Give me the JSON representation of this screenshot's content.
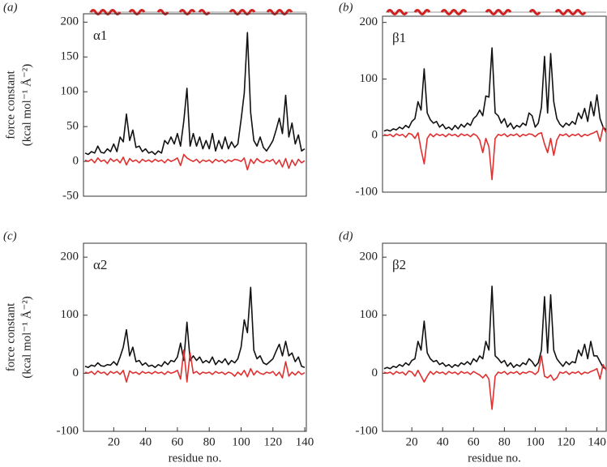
{
  "chart_data": [
    {
      "type": "line",
      "panel": "(a)",
      "label": "α1",
      "ylabel": [
        "force constant",
        "(kcal mol⁻¹ Å⁻²)"
      ],
      "x": [
        2,
        4,
        6,
        8,
        10,
        12,
        14,
        16,
        18,
        20,
        22,
        24,
        26,
        28,
        30,
        32,
        34,
        36,
        38,
        40,
        42,
        44,
        46,
        48,
        50,
        52,
        54,
        56,
        58,
        60,
        62,
        64,
        66,
        68,
        70,
        72,
        74,
        76,
        78,
        80,
        82,
        84,
        86,
        88,
        90,
        92,
        94,
        96,
        98,
        100,
        102,
        104,
        106,
        108,
        110,
        112,
        114,
        116,
        118,
        120,
        122,
        124,
        126,
        128,
        130,
        132,
        134,
        136,
        138,
        140
      ],
      "series": [
        {
          "color": "#111111",
          "values": [
            12,
            10,
            14,
            12,
            22,
            13,
            12,
            18,
            14,
            25,
            14,
            35,
            28,
            68,
            30,
            45,
            20,
            22,
            14,
            18,
            12,
            14,
            10,
            15,
            12,
            30,
            25,
            35,
            25,
            40,
            22,
            58,
            105,
            22,
            40,
            22,
            35,
            18,
            30,
            18,
            40,
            15,
            30,
            18,
            35,
            18,
            28,
            20,
            25,
            60,
            98,
            185,
            70,
            30,
            22,
            35,
            20,
            15,
            22,
            30,
            45,
            62,
            40,
            95,
            35,
            55,
            25,
            38,
            15,
            18
          ]
        },
        {
          "color": "#e03030",
          "values": [
            2,
            0,
            3,
            -2,
            5,
            0,
            2,
            -3,
            4,
            0,
            3,
            -2,
            6,
            -5,
            4,
            0,
            2,
            -2,
            3,
            0,
            2,
            -1,
            3,
            0,
            2,
            -2,
            3,
            0,
            2,
            5,
            -6,
            10,
            5,
            2,
            0,
            3,
            -2,
            2,
            0,
            2,
            -2,
            3,
            0,
            2,
            -2,
            2,
            0,
            3,
            2,
            0,
            5,
            -12,
            3,
            -3,
            4,
            0,
            -2,
            2,
            0,
            3,
            -4,
            2,
            -8,
            4,
            -10,
            2,
            -6,
            3,
            -2,
            1
          ]
        }
      ],
      "xlim": [
        1,
        141
      ],
      "ylim": [
        -50,
        212
      ],
      "yticks": [
        -50,
        0,
        50,
        100,
        150,
        200
      ]
    },
    {
      "type": "line",
      "panel": "(b)",
      "label": "β1",
      "x": [
        2,
        4,
        6,
        8,
        10,
        12,
        14,
        16,
        18,
        20,
        22,
        24,
        26,
        28,
        30,
        32,
        34,
        36,
        38,
        40,
        42,
        44,
        46,
        48,
        50,
        52,
        54,
        56,
        58,
        60,
        62,
        64,
        66,
        68,
        70,
        72,
        74,
        76,
        78,
        80,
        82,
        84,
        86,
        88,
        90,
        92,
        94,
        96,
        98,
        100,
        102,
        104,
        106,
        108,
        110,
        112,
        114,
        116,
        118,
        120,
        122,
        124,
        126,
        128,
        130,
        132,
        134,
        136,
        138,
        140,
        142,
        144,
        146
      ],
      "series": [
        {
          "color": "#111111",
          "values": [
            8,
            10,
            8,
            12,
            10,
            15,
            12,
            18,
            14,
            25,
            30,
            60,
            45,
            118,
            40,
            28,
            22,
            25,
            15,
            20,
            12,
            15,
            10,
            18,
            12,
            20,
            15,
            22,
            18,
            30,
            35,
            45,
            35,
            70,
            68,
            155,
            40,
            35,
            22,
            30,
            15,
            22,
            12,
            18,
            15,
            22,
            18,
            40,
            35,
            15,
            22,
            50,
            140,
            40,
            145,
            60,
            30,
            20,
            15,
            22,
            18,
            25,
            20,
            40,
            30,
            48,
            25,
            60,
            35,
            72,
            30,
            15,
            10
          ]
        },
        {
          "color": "#e03030",
          "values": [
            2,
            0,
            2,
            -2,
            3,
            0,
            2,
            -3,
            4,
            2,
            -5,
            5,
            -25,
            -50,
            -5,
            3,
            -2,
            3,
            0,
            2,
            -2,
            3,
            0,
            2,
            -2,
            3,
            0,
            2,
            -2,
            3,
            0,
            -8,
            -30,
            -5,
            -20,
            -78,
            -5,
            2,
            0,
            3,
            -2,
            2,
            0,
            3,
            -2,
            2,
            0,
            3,
            2,
            -2,
            3,
            5,
            -15,
            -30,
            -5,
            -35,
            -8,
            2,
            0,
            3,
            -2,
            2,
            0,
            3,
            -2,
            2,
            0,
            3,
            5,
            8,
            -10,
            15,
            5
          ]
        }
      ],
      "xlim": [
        1,
        146
      ],
      "ylim": [
        -100,
        211
      ],
      "yticks": [
        -100,
        0,
        100,
        200
      ]
    },
    {
      "type": "line",
      "panel": "(c)",
      "label": "α2",
      "ylabel": [
        "force constant",
        "(kcal mol⁻¹ Å⁻²)"
      ],
      "xlabel": "residue no.",
      "x": [
        2,
        4,
        6,
        8,
        10,
        12,
        14,
        16,
        18,
        20,
        22,
        24,
        26,
        28,
        30,
        32,
        34,
        36,
        38,
        40,
        42,
        44,
        46,
        48,
        50,
        52,
        54,
        56,
        58,
        60,
        62,
        64,
        66,
        68,
        70,
        72,
        74,
        76,
        78,
        80,
        82,
        84,
        86,
        88,
        90,
        92,
        94,
        96,
        98,
        100,
        102,
        104,
        106,
        108,
        110,
        112,
        114,
        116,
        118,
        120,
        122,
        124,
        126,
        128,
        130,
        132,
        134,
        136,
        138,
        140
      ],
      "series": [
        {
          "color": "#111111",
          "values": [
            12,
            10,
            14,
            12,
            18,
            13,
            12,
            15,
            14,
            20,
            14,
            28,
            45,
            75,
            30,
            45,
            20,
            22,
            14,
            18,
            12,
            14,
            10,
            15,
            12,
            20,
            15,
            22,
            20,
            28,
            52,
            22,
            88,
            22,
            30,
            22,
            28,
            18,
            22,
            18,
            28,
            15,
            22,
            18,
            25,
            15,
            22,
            18,
            25,
            45,
            92,
            70,
            148,
            40,
            25,
            30,
            18,
            15,
            20,
            25,
            38,
            50,
            30,
            55,
            30,
            35,
            20,
            28,
            12,
            10
          ]
        },
        {
          "color": "#e03030",
          "values": [
            2,
            0,
            3,
            -2,
            4,
            0,
            2,
            -3,
            3,
            0,
            3,
            -2,
            5,
            -15,
            4,
            0,
            2,
            -2,
            3,
            0,
            2,
            -1,
            3,
            0,
            2,
            -2,
            3,
            0,
            2,
            5,
            -10,
            40,
            -15,
            35,
            0,
            3,
            -2,
            2,
            0,
            2,
            -2,
            3,
            0,
            2,
            -2,
            2,
            0,
            -5,
            2,
            -3,
            5,
            -6,
            8,
            -3,
            4,
            0,
            -2,
            2,
            0,
            3,
            -4,
            2,
            -8,
            20,
            -5,
            2,
            -3,
            3,
            -2,
            1
          ]
        }
      ],
      "xlim": [
        1,
        141
      ],
      "ylim": [
        -100,
        224
      ],
      "yticks": [
        -100,
        0,
        100,
        200
      ],
      "xticks": [
        20,
        40,
        60,
        80,
        100,
        120,
        140
      ]
    },
    {
      "type": "line",
      "panel": "(d)",
      "label": "β2",
      "xlabel": "residue no.",
      "x": [
        2,
        4,
        6,
        8,
        10,
        12,
        14,
        16,
        18,
        20,
        22,
        24,
        26,
        28,
        30,
        32,
        34,
        36,
        38,
        40,
        42,
        44,
        46,
        48,
        50,
        52,
        54,
        56,
        58,
        60,
        62,
        64,
        66,
        68,
        70,
        72,
        74,
        76,
        78,
        80,
        82,
        84,
        86,
        88,
        90,
        92,
        94,
        96,
        98,
        100,
        102,
        104,
        106,
        108,
        110,
        112,
        114,
        116,
        118,
        120,
        122,
        124,
        126,
        128,
        130,
        132,
        134,
        136,
        138,
        140,
        142,
        144,
        146
      ],
      "series": [
        {
          "color": "#111111",
          "values": [
            8,
            10,
            8,
            12,
            10,
            15,
            12,
            18,
            14,
            22,
            25,
            55,
            40,
            90,
            35,
            25,
            20,
            22,
            15,
            18,
            12,
            15,
            10,
            15,
            12,
            18,
            15,
            20,
            15,
            25,
            20,
            30,
            25,
            55,
            40,
            150,
            30,
            25,
            18,
            22,
            12,
            18,
            10,
            15,
            12,
            18,
            15,
            25,
            20,
            12,
            18,
            40,
            132,
            35,
            135,
            40,
            25,
            18,
            12,
            20,
            15,
            20,
            18,
            40,
            30,
            50,
            25,
            55,
            30,
            30,
            20,
            10,
            8
          ]
        },
        {
          "color": "#e03030",
          "values": [
            2,
            0,
            2,
            -2,
            3,
            0,
            2,
            -3,
            4,
            2,
            -5,
            5,
            -5,
            -15,
            -5,
            3,
            -2,
            3,
            0,
            2,
            -2,
            3,
            0,
            2,
            -2,
            3,
            0,
            2,
            -2,
            3,
            0,
            -3,
            -8,
            -2,
            -10,
            -62,
            -5,
            2,
            0,
            3,
            -2,
            2,
            0,
            3,
            -2,
            2,
            0,
            3,
            2,
            -2,
            3,
            30,
            -5,
            -8,
            -3,
            -12,
            -8,
            2,
            0,
            3,
            -2,
            2,
            0,
            3,
            -2,
            2,
            0,
            3,
            5,
            8,
            -10,
            15,
            5
          ]
        }
      ],
      "xlim": [
        1,
        146
      ],
      "ylim": [
        -100,
        224
      ],
      "yticks": [
        -100,
        0,
        100,
        200
      ],
      "xticks": [
        20,
        40,
        60,
        80,
        100,
        120,
        140
      ]
    }
  ]
}
